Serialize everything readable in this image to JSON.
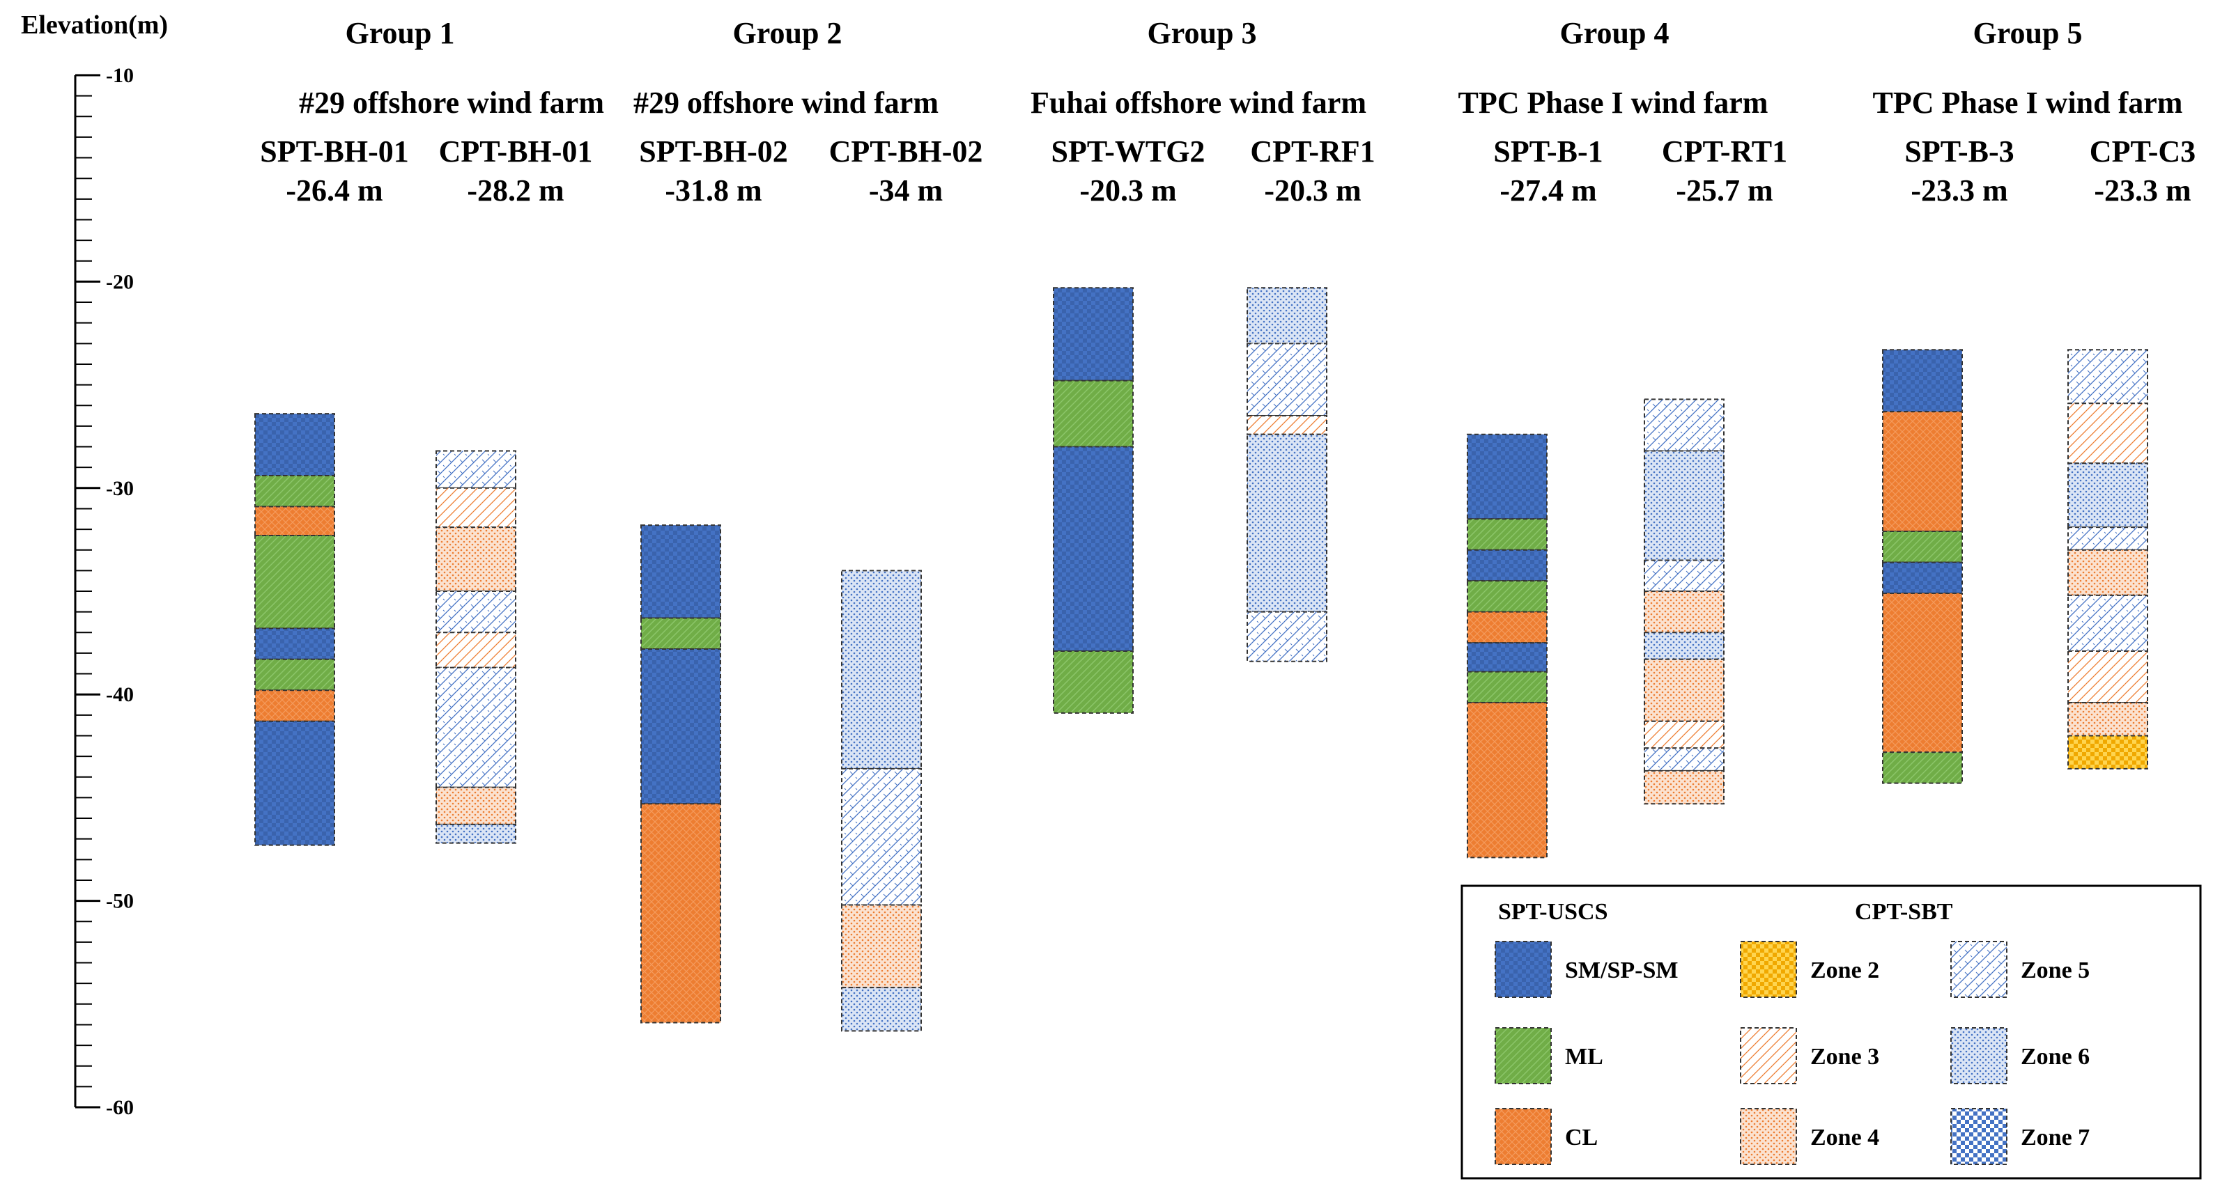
{
  "chart_data": {
    "type": "stratigraphic-column",
    "ylabel": "Elevation(m)",
    "ylim": [
      -60,
      -10
    ],
    "yticks": [
      -10,
      -20,
      -30,
      -40,
      -50,
      -60
    ],
    "groups": [
      {
        "title": "Group 1",
        "columns": [
          {
            "site": "#29 offshore wind farm",
            "borehole": "SPT-BH-01",
            "elevation": "-26.4 m",
            "kind": "SPT",
            "layers": [
              {
                "top": -26.4,
                "bottom": -29.4,
                "class": "SM/SP-SM"
              },
              {
                "top": -29.4,
                "bottom": -30.9,
                "class": "ML"
              },
              {
                "top": -30.9,
                "bottom": -32.3,
                "class": "CL"
              },
              {
                "top": -32.3,
                "bottom": -36.8,
                "class": "ML"
              },
              {
                "top": -36.8,
                "bottom": -38.3,
                "class": "SM/SP-SM"
              },
              {
                "top": -38.3,
                "bottom": -39.8,
                "class": "ML"
              },
              {
                "top": -39.8,
                "bottom": -41.3,
                "class": "CL"
              },
              {
                "top": -41.3,
                "bottom": -47.3,
                "class": "SM/SP-SM"
              }
            ]
          },
          {
            "site": "",
            "borehole": "CPT-BH-01",
            "elevation": "-28.2 m",
            "kind": "CPT",
            "layers": [
              {
                "top": -28.2,
                "bottom": -30.0,
                "class": "Zone 5"
              },
              {
                "top": -30.0,
                "bottom": -31.9,
                "class": "Zone 3"
              },
              {
                "top": -31.9,
                "bottom": -35.0,
                "class": "Zone 4"
              },
              {
                "top": -35.0,
                "bottom": -37.0,
                "class": "Zone 5"
              },
              {
                "top": -37.0,
                "bottom": -38.7,
                "class": "Zone 3"
              },
              {
                "top": -38.7,
                "bottom": -44.5,
                "class": "Zone 5"
              },
              {
                "top": -44.5,
                "bottom": -46.3,
                "class": "Zone 4"
              },
              {
                "top": -46.3,
                "bottom": -47.2,
                "class": "Zone 6"
              }
            ]
          }
        ]
      },
      {
        "title": "Group 2",
        "columns": [
          {
            "site": "#29 offshore wind farm",
            "borehole": "SPT-BH-02",
            "elevation": "-31.8 m",
            "kind": "SPT",
            "layers": [
              {
                "top": -31.8,
                "bottom": -36.3,
                "class": "SM/SP-SM"
              },
              {
                "top": -36.3,
                "bottom": -37.8,
                "class": "ML"
              },
              {
                "top": -37.8,
                "bottom": -45.3,
                "class": "SM/SP-SM"
              },
              {
                "top": -45.3,
                "bottom": -55.9,
                "class": "CL"
              }
            ]
          },
          {
            "site": "",
            "borehole": "CPT-BH-02",
            "elevation": "-34 m",
            "kind": "CPT",
            "layers": [
              {
                "top": -34.0,
                "bottom": -43.6,
                "class": "Zone 6"
              },
              {
                "top": -43.6,
                "bottom": -50.2,
                "class": "Zone 5"
              },
              {
                "top": -50.2,
                "bottom": -54.2,
                "class": "Zone 4"
              },
              {
                "top": -54.2,
                "bottom": -56.3,
                "class": "Zone 6"
              }
            ]
          }
        ]
      },
      {
        "title": "Group 3",
        "columns": [
          {
            "site": "Fuhai offshore wind farm",
            "borehole": "SPT-WTG2",
            "elevation": "-20.3 m",
            "kind": "SPT",
            "layers": [
              {
                "top": -20.3,
                "bottom": -24.8,
                "class": "SM/SP-SM"
              },
              {
                "top": -24.8,
                "bottom": -28.0,
                "class": "ML"
              },
              {
                "top": -28.0,
                "bottom": -37.9,
                "class": "SM/SP-SM"
              },
              {
                "top": -37.9,
                "bottom": -40.9,
                "class": "ML"
              }
            ]
          },
          {
            "site": "",
            "borehole": "CPT-RF1",
            "elevation": "-20.3 m",
            "kind": "CPT",
            "layers": [
              {
                "top": -20.3,
                "bottom": -23.0,
                "class": "Zone 6"
              },
              {
                "top": -23.0,
                "bottom": -26.5,
                "class": "Zone 5"
              },
              {
                "top": -26.5,
                "bottom": -27.4,
                "class": "Zone 3"
              },
              {
                "top": -27.4,
                "bottom": -36.0,
                "class": "Zone 6"
              },
              {
                "top": -36.0,
                "bottom": -38.4,
                "class": "Zone 5"
              }
            ]
          }
        ]
      },
      {
        "title": "Group 4",
        "columns": [
          {
            "site": "TPC Phase I wind farm",
            "borehole": "SPT-B-1",
            "elevation": "-27.4 m",
            "kind": "SPT",
            "layers": [
              {
                "top": -27.4,
                "bottom": -31.5,
                "class": "SM/SP-SM"
              },
              {
                "top": -31.5,
                "bottom": -33.0,
                "class": "ML"
              },
              {
                "top": -33.0,
                "bottom": -34.5,
                "class": "SM/SP-SM"
              },
              {
                "top": -34.5,
                "bottom": -36.0,
                "class": "ML"
              },
              {
                "top": -36.0,
                "bottom": -37.5,
                "class": "CL"
              },
              {
                "top": -37.5,
                "bottom": -38.9,
                "class": "SM/SP-SM"
              },
              {
                "top": -38.9,
                "bottom": -40.4,
                "class": "ML"
              },
              {
                "top": -40.4,
                "bottom": -47.9,
                "class": "CL"
              }
            ]
          },
          {
            "site": "",
            "borehole": "CPT-RT1",
            "elevation": "-25.7 m",
            "kind": "CPT",
            "layers": [
              {
                "top": -25.7,
                "bottom": -28.2,
                "class": "Zone 5"
              },
              {
                "top": -28.2,
                "bottom": -33.5,
                "class": "Zone 6"
              },
              {
                "top": -33.5,
                "bottom": -35.0,
                "class": "Zone 5"
              },
              {
                "top": -35.0,
                "bottom": -37.0,
                "class": "Zone 4"
              },
              {
                "top": -37.0,
                "bottom": -38.3,
                "class": "Zone 6"
              },
              {
                "top": -38.3,
                "bottom": -41.3,
                "class": "Zone 4"
              },
              {
                "top": -41.3,
                "bottom": -42.6,
                "class": "Zone 3"
              },
              {
                "top": -42.6,
                "bottom": -43.7,
                "class": "Zone 5"
              },
              {
                "top": -43.7,
                "bottom": -45.3,
                "class": "Zone 4"
              }
            ]
          }
        ]
      },
      {
        "title": "Group 5",
        "columns": [
          {
            "site": "TPC Phase I wind farm",
            "borehole": "SPT-B-3",
            "elevation": "-23.3 m",
            "kind": "SPT",
            "layers": [
              {
                "top": -23.3,
                "bottom": -26.3,
                "class": "SM/SP-SM"
              },
              {
                "top": -26.3,
                "bottom": -32.1,
                "class": "CL"
              },
              {
                "top": -32.1,
                "bottom": -33.6,
                "class": "ML"
              },
              {
                "top": -33.6,
                "bottom": -35.1,
                "class": "SM/SP-SM"
              },
              {
                "top": -35.1,
                "bottom": -42.8,
                "class": "CL"
              },
              {
                "top": -42.8,
                "bottom": -44.3,
                "class": "ML"
              }
            ]
          },
          {
            "site": "",
            "borehole": "CPT-C3",
            "elevation": "-23.3 m",
            "kind": "CPT",
            "layers": [
              {
                "top": -23.3,
                "bottom": -25.9,
                "class": "Zone 5"
              },
              {
                "top": -25.9,
                "bottom": -28.8,
                "class": "Zone 3"
              },
              {
                "top": -28.8,
                "bottom": -31.9,
                "class": "Zone 6"
              },
              {
                "top": -31.9,
                "bottom": -33.0,
                "class": "Zone 5"
              },
              {
                "top": -33.0,
                "bottom": -35.2,
                "class": "Zone 4"
              },
              {
                "top": -35.2,
                "bottom": -37.9,
                "class": "Zone 5"
              },
              {
                "top": -37.9,
                "bottom": -40.4,
                "class": "Zone 3"
              },
              {
                "top": -40.4,
                "bottom": -42.0,
                "class": "Zone 4"
              },
              {
                "top": -42.0,
                "bottom": -43.6,
                "class": "Zone 2"
              }
            ]
          }
        ]
      }
    ],
    "legend": {
      "spt_title": "SPT-USCS",
      "cpt_title": "CPT-SBT",
      "items": [
        {
          "label": "SM/SP-SM",
          "class": "SM/SP-SM"
        },
        {
          "label": "ML",
          "class": "ML"
        },
        {
          "label": "CL",
          "class": "CL"
        },
        {
          "label": "Zone  2",
          "class": "Zone 2"
        },
        {
          "label": "Zone  3",
          "class": "Zone 3"
        },
        {
          "label": "Zone  4",
          "class": "Zone 4"
        },
        {
          "label": "Zone  5",
          "class": "Zone 5"
        },
        {
          "label": "Zone  6",
          "class": "Zone 6"
        },
        {
          "label": "Zone  7",
          "class": "Zone 7"
        }
      ]
    }
  },
  "colors": {
    "sm": "#4472c4",
    "ml": "#70ad47",
    "cl": "#ed7d31",
    "zone2": "#ffc000",
    "zone_blue": "#4472c4",
    "zone_orange": "#ed7d31"
  }
}
